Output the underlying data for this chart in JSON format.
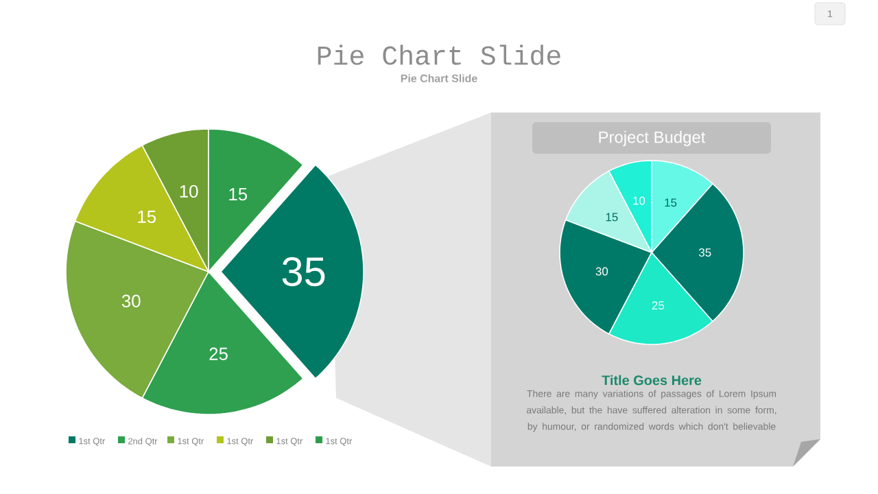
{
  "chart_data": [
    {
      "type": "pie",
      "title": "Pie Chart Slide",
      "subtitle": "Pie Chart Slide",
      "categories": [
        "1st Qtr",
        "2nd Qtr",
        "1st Qtr",
        "1st Qtr",
        "1st Qtr",
        "1st Qtr"
      ],
      "values": [
        35,
        25,
        30,
        15,
        10,
        15
      ],
      "colors": [
        "#007a64",
        "#2ea050",
        "#7aab3c",
        "#b4c41c",
        "#6f9e32",
        "#2e9e4c"
      ],
      "data_labels": true,
      "legend": "bottom",
      "annotations": [
        "1"
      ]
    },
    {
      "type": "pie",
      "title": "Project Budget",
      "categories": [
        null,
        null,
        null,
        null,
        null,
        null
      ],
      "values": [
        35,
        25,
        30,
        15,
        10,
        15
      ],
      "colors": [
        "#00796b",
        "#1de9c6",
        "#007a68",
        "#aaf5e8",
        "#1ff0d6",
        "#66f8e6"
      ],
      "data_labels": true,
      "annotations": [
        "Title Goes Here",
        "There are many variations of passages  of Lorem Ipsum available, but the have suffered alteration in some  form, by humour, or randomized words which don't believable"
      ]
    }
  ]
}
